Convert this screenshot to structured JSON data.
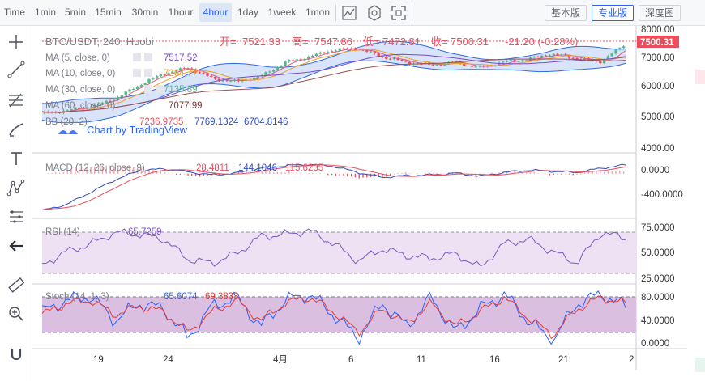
{
  "toolbar": {
    "timeframes": [
      {
        "label": "Time",
        "active": false
      },
      {
        "label": "1min",
        "active": false
      },
      {
        "label": "5min",
        "active": false
      },
      {
        "label": "15min",
        "active": false
      },
      {
        "label": "30min",
        "active": false
      },
      {
        "label": "1hour",
        "active": false
      },
      {
        "label": "4hour",
        "active": true
      },
      {
        "label": "1day",
        "active": false
      },
      {
        "label": "1week",
        "active": false
      },
      {
        "label": "1mon",
        "active": false
      }
    ],
    "icons": [
      "line-chart-icon",
      "settings-icon",
      "fullscreen-icon"
    ],
    "versions": [
      {
        "label": "基本版",
        "active": false
      },
      {
        "label": "专业版",
        "active": true
      },
      {
        "label": "深度图",
        "active": false
      }
    ]
  },
  "left_tools": [
    "crosshair-icon",
    "trend-line-icon",
    "fib-retracement-icon",
    "brush-icon",
    "text-tool-icon",
    "pattern-icon",
    "forecast-icon",
    "back-arrow-icon",
    "ruler-icon",
    "zoom-in-icon",
    "magnet-icon"
  ],
  "legend": {
    "symbol": "BTC/USDT, 240, Huobi",
    "open_label": "开=",
    "open": "7521.33",
    "high_label": "高=",
    "high": "7547.86",
    "low_label": "低=",
    "low": "7472.81",
    "close_label": "收=",
    "close": "7500.31",
    "change": "-21.20 (-0.28%)",
    "ma5_label": "MA (5, close, 0)",
    "ma5": "7517.52",
    "ma10_label": "MA (10, close, 0)",
    "ma10": "7264.77",
    "ma30_label": "MA (30, close, 0)",
    "ma30": "7135.89",
    "ma60_label": "MA (60, close, 0)",
    "ma60": "7077.99",
    "bb_label": "BB (20, 2)",
    "bb_basis": "7236.9735",
    "bb_upper": "7769.1324",
    "bb_lower": "6704.8146",
    "watermark": "Chart by TradingView"
  },
  "macd": {
    "label": "MACD (12, 26, close, 9)",
    "hist": "28.4811",
    "macd": "144.1046",
    "signal": "115.6235"
  },
  "rsi": {
    "label": "RSI (14)",
    "value": "65.7259"
  },
  "stoch": {
    "label": "Stoch (14, 1, 3)",
    "k": "65.6074",
    "d": "69.3838"
  },
  "price_axis": {
    "main": [
      "8000.00",
      "7000.00",
      "6000.00",
      "5000.00",
      "4000.00"
    ],
    "current": "7500.31",
    "macd": [
      "0.0000",
      "-400.0000"
    ],
    "rsi": [
      "75.0000",
      "50.0000",
      "25.0000"
    ],
    "stoch": [
      "80.0000",
      "40.0000",
      "0.0000"
    ]
  },
  "time_axis": [
    "19",
    "24",
    "4月",
    "6",
    "11",
    "16",
    "21",
    "2"
  ],
  "colors": {
    "up": "#53b987",
    "down": "#eb4d5c",
    "ma5": "#e05a8a",
    "ma10": "#f0a020",
    "ma30": "#7a4bcc",
    "bb": "#2e6ae6",
    "bb_fill": "#2e6ae6",
    "rsi": "#7e57c2",
    "stoch_k": "#2962ff",
    "stoch_d": "#e53935",
    "accent": "#2962ff"
  },
  "chart_data": {
    "type": "candlestick",
    "title": "BTC/USDT, 240, Huobi",
    "ylim": [
      3700,
      8100
    ],
    "x_ticks": [
      "19",
      "24",
      "4月",
      "6",
      "11",
      "16",
      "21",
      "2"
    ],
    "close_trend": [
      5050,
      5150,
      5300,
      5600,
      6100,
      6500,
      6700,
      6300,
      6200,
      6400,
      6900,
      7100,
      7350,
      7400,
      7100,
      6900,
      6800,
      6900,
      6700,
      6900,
      7000,
      7200,
      7050,
      6900,
      7500
    ],
    "current_price": 7500.31,
    "macd_ylim": [
      -700,
      300
    ],
    "macd_trend": [
      -600,
      -500,
      -300,
      -100,
      50,
      80,
      30,
      -20,
      10,
      90,
      130,
      150,
      120,
      20,
      -60,
      -30,
      -20,
      10,
      -40,
      20,
      60,
      40,
      20,
      90,
      144
    ],
    "rsi_ylim": [
      20,
      85
    ],
    "rsi_trend": [
      38,
      52,
      60,
      72,
      70,
      65,
      44,
      40,
      50,
      68,
      70,
      74,
      60,
      42,
      55,
      48,
      45,
      50,
      35,
      60,
      65,
      52,
      40,
      72,
      66
    ],
    "stoch_ylim": [
      -5,
      100
    ],
    "stoch_k_trend": [
      55,
      75,
      82,
      40,
      70,
      60,
      10,
      65,
      80,
      30,
      75,
      85,
      50,
      10,
      70,
      30,
      80,
      20,
      60,
      85,
      40,
      5,
      70,
      85,
      65
    ],
    "stoch_d_trend": [
      50,
      70,
      75,
      50,
      65,
      55,
      20,
      55,
      75,
      40,
      70,
      80,
      55,
      20,
      60,
      35,
      70,
      30,
      55,
      80,
      45,
      15,
      60,
      80,
      69
    ]
  }
}
